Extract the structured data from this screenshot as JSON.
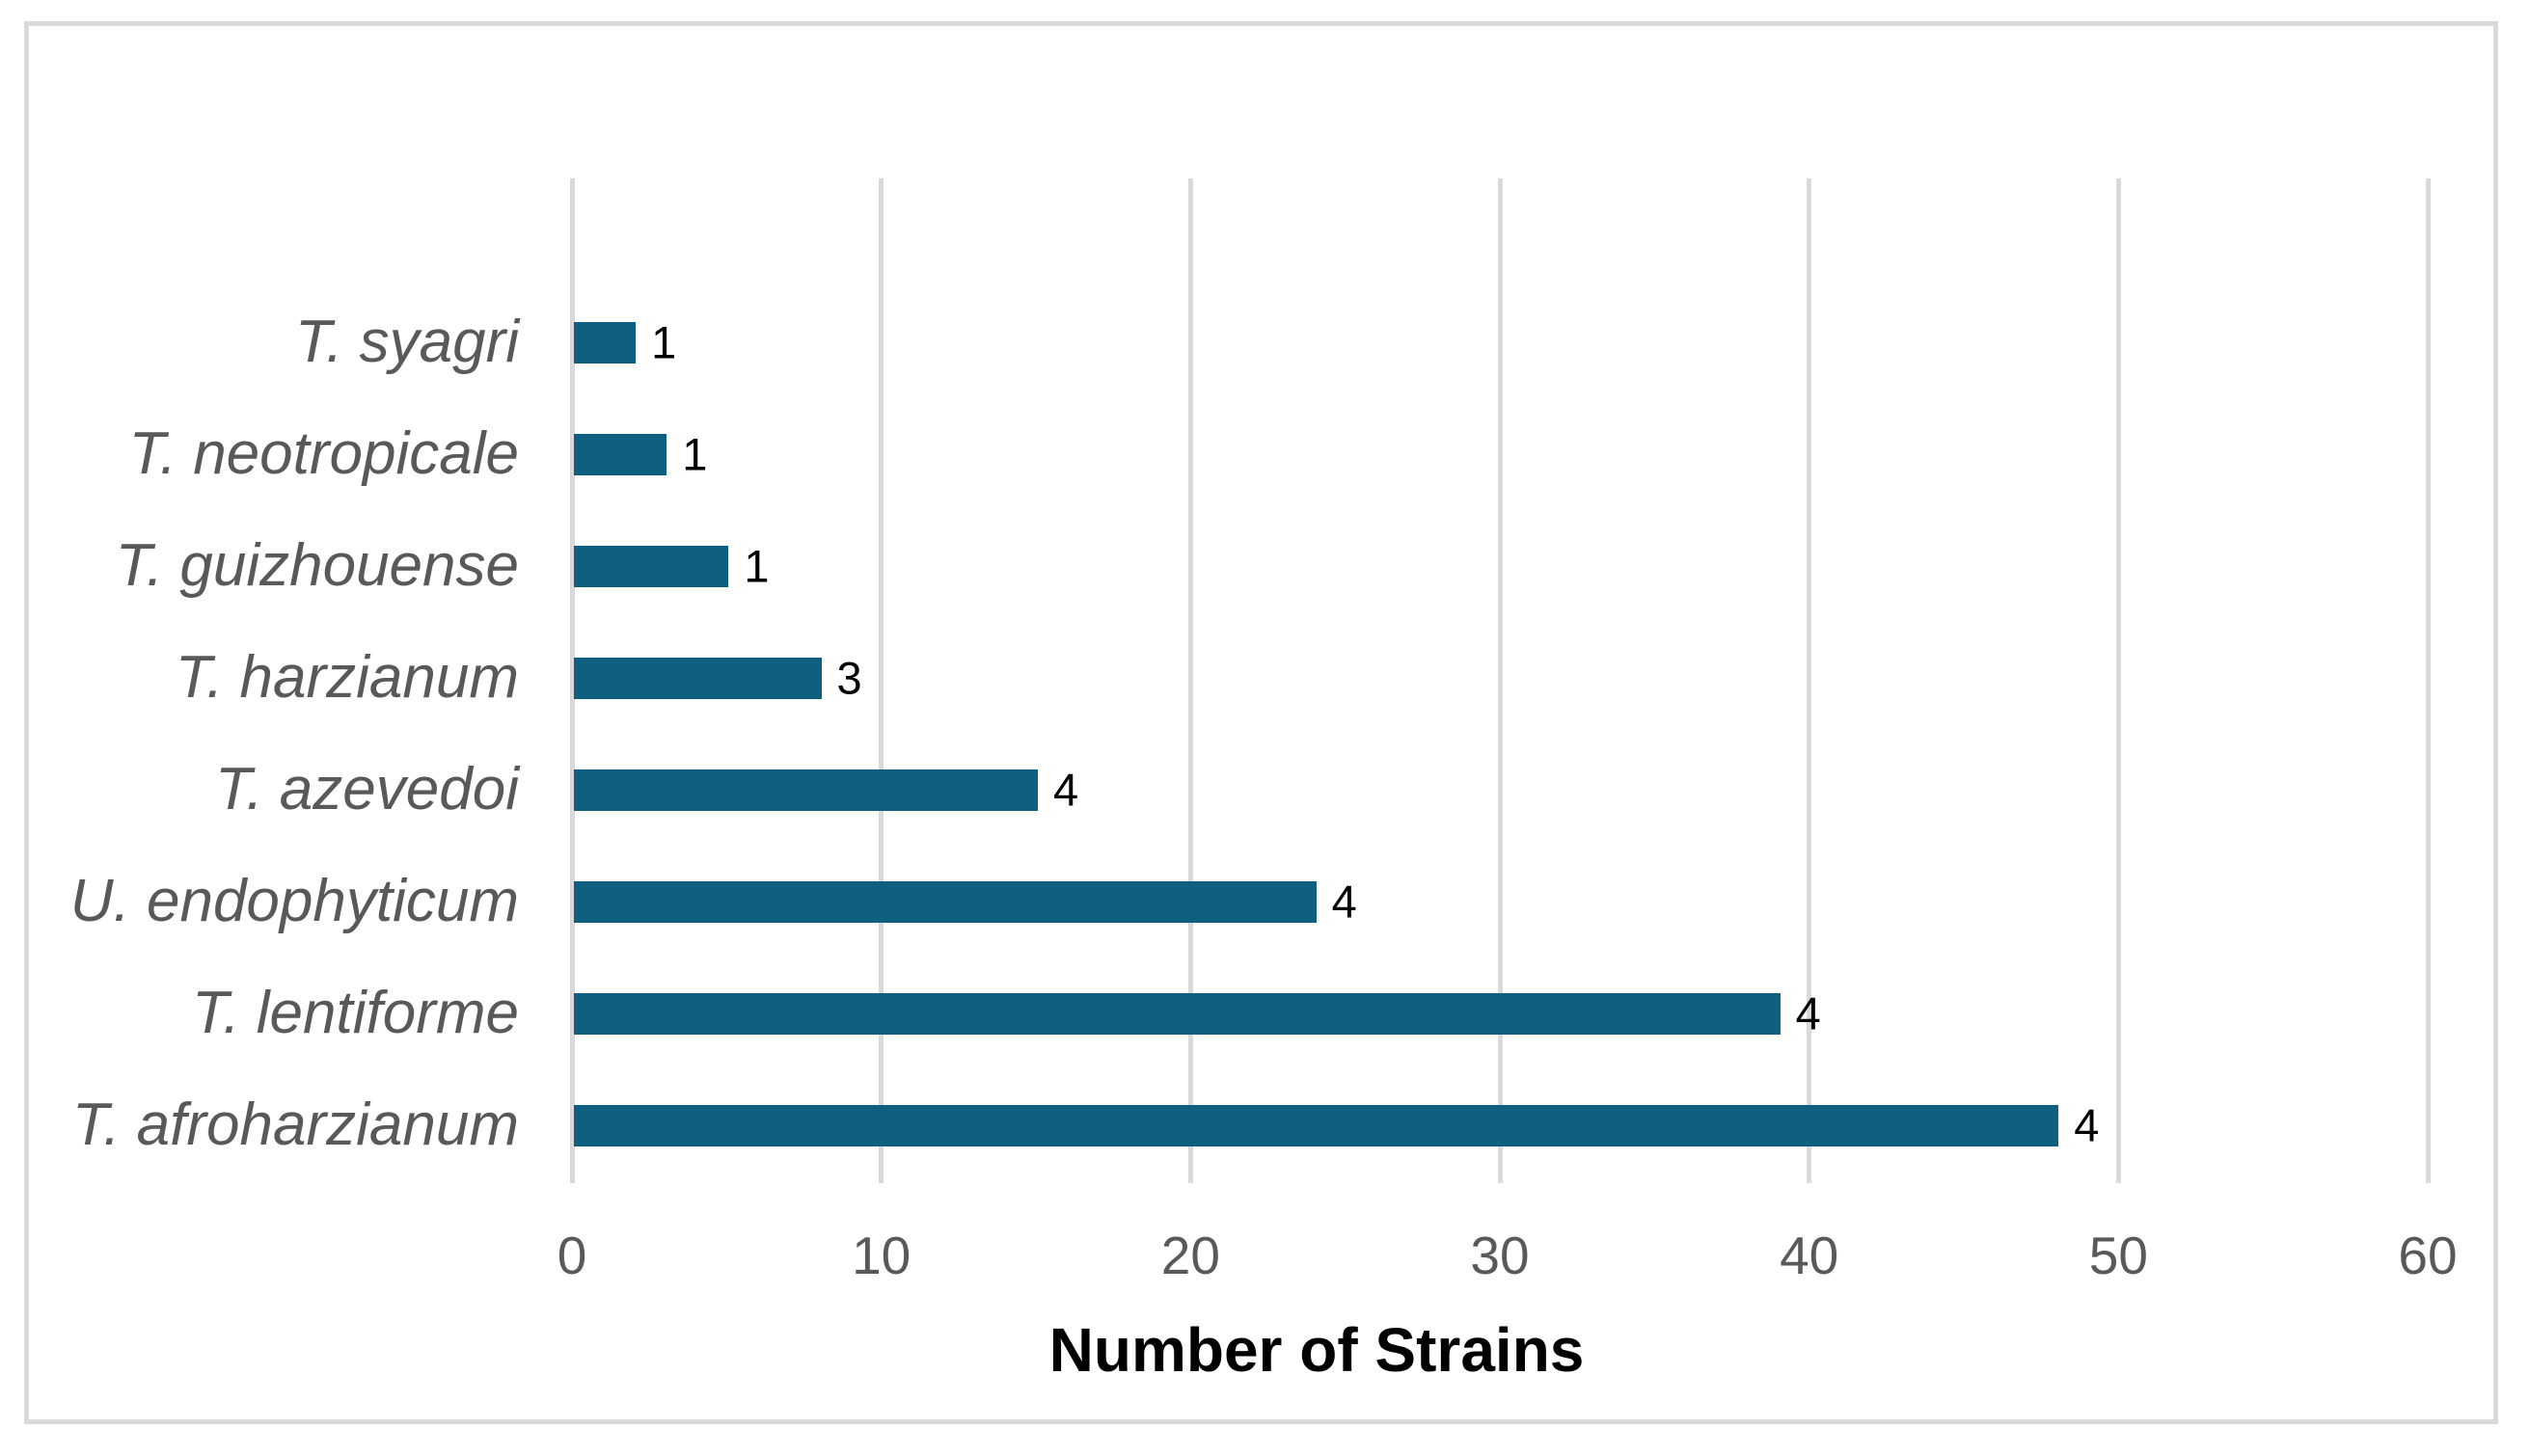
{
  "figure": {
    "background_color": "#ffffff",
    "border_color": "#d9d9d9"
  },
  "chart_data": {
    "type": "bar",
    "orientation": "horizontal",
    "title": "",
    "xlabel": "Number of Strains",
    "ylabel": "",
    "categories": [
      "T. syagri",
      "T. neotropicale",
      "T. guizhouense",
      "T. harzianum",
      "T. azevedoi",
      "U. endophyticum",
      "T. lentiforme",
      "T. afroharzianum"
    ],
    "values": [
      2,
      3,
      5,
      8,
      15,
      24,
      39,
      48
    ],
    "data_labels": [
      "1",
      "1",
      "1",
      "3",
      "4",
      "4",
      "4",
      "4"
    ],
    "xlim": [
      0,
      60
    ],
    "xticks": [
      "0",
      "10",
      "20",
      "30",
      "40",
      "50",
      "60"
    ],
    "grid": true,
    "legend": "none",
    "category_style": "italic",
    "bar_color": "#0f6080",
    "gridline_color": "#d9d9d9",
    "tick_label_color": "#595959",
    "category_label_color": "#595959",
    "value_label_color": "#000000",
    "axis_title_color": "#000000"
  }
}
